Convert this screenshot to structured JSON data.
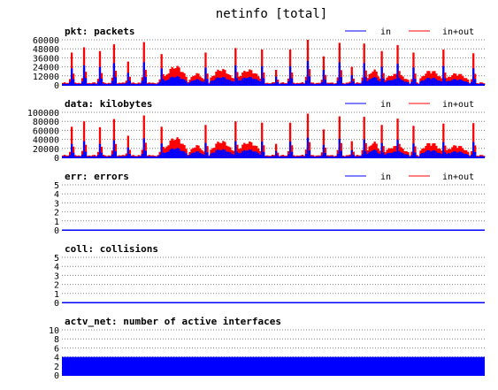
{
  "title": "netinfo [total]",
  "colors": {
    "in": "#0000ff",
    "total": "#ff0000",
    "axis": "#0000ff",
    "grid": "#808080"
  },
  "chart_data": [
    {
      "type": "area",
      "key": "pkt",
      "title": "pkt: packets",
      "legend": [
        "in",
        "in+out"
      ],
      "yticks": [
        "0",
        "12000",
        "24000",
        "36000",
        "48000",
        "60000"
      ],
      "ylim": [
        0,
        60000
      ],
      "grid": true,
      "legend_position": "top-right",
      "samples": 240,
      "series": [
        {
          "name": "in",
          "profile": "in"
        },
        {
          "name": "in+out",
          "profile": "total"
        }
      ],
      "spikes": [
        {
          "at": 5,
          "total": 43000,
          "in": 22000
        },
        {
          "at": 12,
          "total": 50000,
          "in": 26000
        },
        {
          "at": 21,
          "total": 45000,
          "in": 24000
        },
        {
          "at": 29,
          "total": 54000,
          "in": 29000
        },
        {
          "at": 37,
          "total": 31000,
          "in": 16000
        },
        {
          "at": 46,
          "total": 57000,
          "in": 30000
        },
        {
          "at": 56,
          "total": 41000,
          "in": 22000
        },
        {
          "at": 81,
          "total": 43000,
          "in": 23000
        },
        {
          "at": 98,
          "total": 49000,
          "in": 26000
        },
        {
          "at": 113,
          "total": 47000,
          "in": 25000
        },
        {
          "at": 121,
          "total": 20000,
          "in": 11000
        },
        {
          "at": 129,
          "total": 47000,
          "in": 25000
        },
        {
          "at": 139,
          "total": 60000,
          "in": 32000
        },
        {
          "at": 148,
          "total": 38000,
          "in": 20000
        },
        {
          "at": 157,
          "total": 56000,
          "in": 30000
        },
        {
          "at": 164,
          "total": 24000,
          "in": 13000
        },
        {
          "at": 171,
          "total": 55000,
          "in": 29000
        },
        {
          "at": 181,
          "total": 45000,
          "in": 24000
        },
        {
          "at": 190,
          "total": 53000,
          "in": 28000
        },
        {
          "at": 199,
          "total": 43000,
          "in": 23000
        },
        {
          "at": 216,
          "total": 47000,
          "in": 25000
        },
        {
          "at": 233,
          "total": 42000,
          "in": 22000
        }
      ],
      "humps": [
        {
          "from": 58,
          "to": 70,
          "total": 26000,
          "in": 12000
        },
        {
          "from": 72,
          "to": 80,
          "total": 16000,
          "in": 8000
        },
        {
          "from": 84,
          "to": 96,
          "total": 22000,
          "in": 11000
        },
        {
          "from": 99,
          "to": 112,
          "total": 21000,
          "in": 11000
        },
        {
          "from": 173,
          "to": 180,
          "total": 21000,
          "in": 11000
        },
        {
          "from": 182,
          "to": 196,
          "total": 15000,
          "in": 8000
        },
        {
          "from": 203,
          "to": 215,
          "total": 20000,
          "in": 10000
        },
        {
          "from": 217,
          "to": 230,
          "total": 16000,
          "in": 8000
        }
      ]
    },
    {
      "type": "area",
      "key": "data",
      "title": "data: kilobytes",
      "legend": [
        "in",
        "in+out"
      ],
      "yticks": [
        "0",
        "20000",
        "40000",
        "60000",
        "80000",
        "100000"
      ],
      "ylim": [
        0,
        100000
      ],
      "grid": true,
      "legend_position": "top-right",
      "samples": 240,
      "series": [
        {
          "name": "in",
          "profile": "in"
        },
        {
          "name": "in+out",
          "profile": "total"
        }
      ],
      "spikes": [
        {
          "at": 5,
          "total": 68000,
          "in": 30000
        },
        {
          "at": 12,
          "total": 80000,
          "in": 36000
        },
        {
          "at": 21,
          "total": 67000,
          "in": 30000
        },
        {
          "at": 29,
          "total": 85000,
          "in": 38000
        },
        {
          "at": 37,
          "total": 48000,
          "in": 22000
        },
        {
          "at": 46,
          "total": 93000,
          "in": 42000
        },
        {
          "at": 56,
          "total": 68000,
          "in": 31000
        },
        {
          "at": 81,
          "total": 72000,
          "in": 32000
        },
        {
          "at": 98,
          "total": 80000,
          "in": 36000
        },
        {
          "at": 113,
          "total": 77000,
          "in": 35000
        },
        {
          "at": 121,
          "total": 30000,
          "in": 14000
        },
        {
          "at": 129,
          "total": 77000,
          "in": 35000
        },
        {
          "at": 139,
          "total": 97000,
          "in": 44000
        },
        {
          "at": 148,
          "total": 62000,
          "in": 28000
        },
        {
          "at": 157,
          "total": 91000,
          "in": 41000
        },
        {
          "at": 164,
          "total": 36000,
          "in": 16000
        },
        {
          "at": 171,
          "total": 90000,
          "in": 40000
        },
        {
          "at": 181,
          "total": 72000,
          "in": 32000
        },
        {
          "at": 190,
          "total": 86000,
          "in": 39000
        },
        {
          "at": 199,
          "total": 70000,
          "in": 31000
        },
        {
          "at": 216,
          "total": 75000,
          "in": 34000
        },
        {
          "at": 233,
          "total": 76000,
          "in": 34000
        }
      ],
      "humps": [
        {
          "from": 58,
          "to": 70,
          "total": 46000,
          "in": 22000
        },
        {
          "from": 72,
          "to": 80,
          "total": 28000,
          "in": 14000
        },
        {
          "from": 84,
          "to": 96,
          "total": 38000,
          "in": 19000
        },
        {
          "from": 99,
          "to": 112,
          "total": 36000,
          "in": 18000
        },
        {
          "from": 173,
          "to": 180,
          "total": 36000,
          "in": 18000
        },
        {
          "from": 182,
          "to": 196,
          "total": 26000,
          "in": 13000
        },
        {
          "from": 203,
          "to": 215,
          "total": 34000,
          "in": 17000
        },
        {
          "from": 217,
          "to": 230,
          "total": 28000,
          "in": 14000
        }
      ]
    },
    {
      "type": "line",
      "key": "err",
      "title": "err: errors",
      "legend": [
        "in",
        "in+out"
      ],
      "yticks": [
        "0",
        "1",
        "2",
        "3",
        "4",
        "5"
      ],
      "ylim": [
        0,
        5
      ],
      "grid": true,
      "legend_position": "top-right",
      "constant_value": 0
    },
    {
      "type": "line",
      "key": "coll",
      "title": "coll: collisions",
      "legend": [],
      "yticks": [
        "0",
        "1",
        "2",
        "3",
        "4",
        "5"
      ],
      "ylim": [
        0,
        5
      ],
      "grid": true,
      "constant_value": 0
    },
    {
      "type": "area",
      "key": "actv",
      "title": "actv_net: number of active interfaces",
      "legend": [],
      "yticks": [
        "0",
        "2",
        "4",
        "6",
        "8",
        "10"
      ],
      "ylim": [
        0,
        10
      ],
      "grid": true,
      "constant_value": 4
    }
  ]
}
